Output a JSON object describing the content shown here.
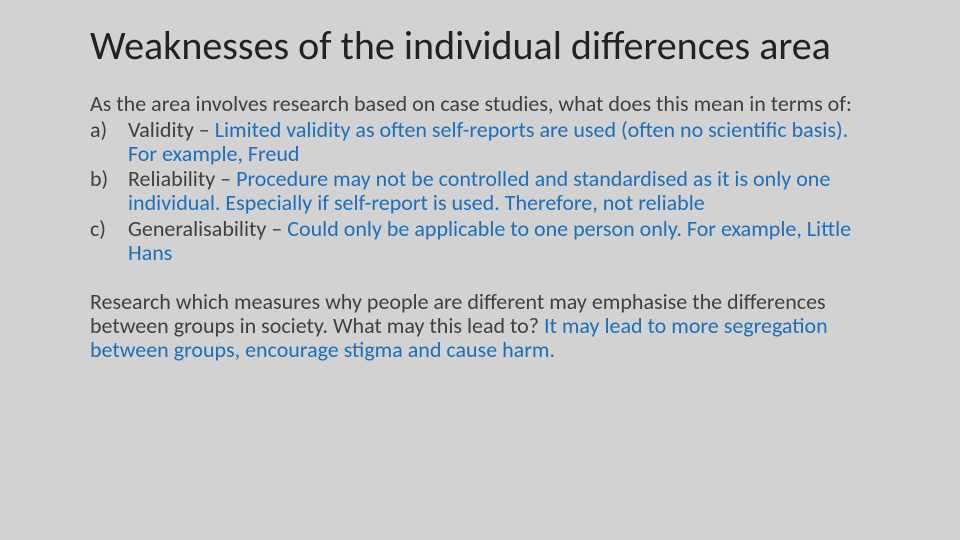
{
  "colors": {
    "background": "#d2d2d2",
    "title": "#222222",
    "body": "#404040",
    "accent": "#1e6fb8"
  },
  "typography": {
    "family": "Calibri",
    "title_fontsize": 40,
    "body_fontsize": 22,
    "line_height": 1.08
  },
  "title": "Weaknesses of the individual differences area",
  "lead": "As the area involves research based on case studies, what does this mean in terms of:",
  "points": [
    {
      "marker": "a)",
      "label": "Validity – ",
      "answer": "Limited validity as often self-reports are used (often no scientific basis). For example, Freud"
    },
    {
      "marker": "b)",
      "label": "Reliability – ",
      "answer": "Procedure may not be controlled and standardised as it is only one individual. Especially if self-report is used. Therefore, not reliable"
    },
    {
      "marker": "c)",
      "label": "Generalisability – ",
      "answer": "Could only be applicable to one person only. For example, Little Hans"
    }
  ],
  "para_lead": "Research which measures why people are different may emphasise the differences between groups in society. What may this lead to? ",
  "para_answer": "It may lead to more segregation between groups, encourage stigma and cause harm."
}
